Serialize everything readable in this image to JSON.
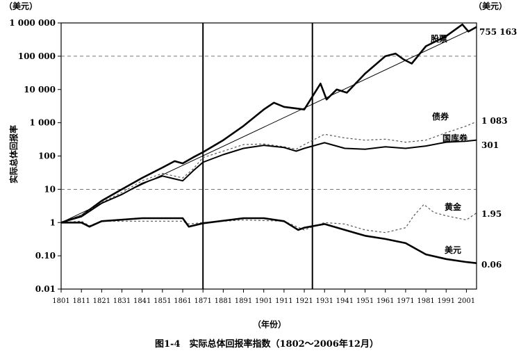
{
  "chart_data": {
    "type": "line",
    "title": "图1-4　实际总体回报率指数（1802～2006年12月）",
    "xlabel": "（年份）",
    "ylabel": "实际总体回报率",
    "y_unit_left": "（美元）",
    "y_unit_right": "（美元）",
    "yscale": "log",
    "ylim": [
      0.01,
      1000000
    ],
    "xlim": [
      1801,
      2006
    ],
    "y_ticks": [
      {
        "value": 0.01,
        "label": "0.01"
      },
      {
        "value": 0.1,
        "label": "0.10"
      },
      {
        "value": 1,
        "label": "1"
      },
      {
        "value": 10,
        "label": "10"
      },
      {
        "value": 100,
        "label": "100"
      },
      {
        "value": 1000,
        "label": "1 000"
      },
      {
        "value": 10000,
        "label": "10 000"
      },
      {
        "value": 100000,
        "label": "100 000"
      },
      {
        "value": 1000000,
        "label": "1 000 000"
      }
    ],
    "x_ticks": [
      1801,
      1811,
      1821,
      1831,
      1841,
      1851,
      1861,
      1871,
      1881,
      1891,
      1901,
      1911,
      1921,
      1931,
      1941,
      1951,
      1961,
      1971,
      1981,
      1991,
      2001
    ],
    "dashed_gridlines": [
      10,
      100000
    ],
    "vertical_markers": [
      1871,
      1925
    ],
    "series": [
      {
        "name": "股票",
        "end_value": "755 163",
        "style": "solid-thick",
        "x": [
          1801,
          1811,
          1821,
          1831,
          1841,
          1851,
          1857,
          1861,
          1866,
          1871,
          1881,
          1891,
          1901,
          1906,
          1911,
          1921,
          1929,
          1932,
          1937,
          1942,
          1951,
          1961,
          1966,
          1970,
          1974,
          1981,
          1991,
          1999,
          2002,
          2006
        ],
        "y": [
          1,
          1.6,
          4.5,
          10,
          22,
          45,
          70,
          60,
          90,
          130,
          300,
          800,
          2500,
          4000,
          3000,
          2500,
          15000,
          5000,
          10000,
          8000,
          30000,
          100000,
          120000,
          80000,
          60000,
          200000,
          400000,
          900000,
          550000,
          755163
        ]
      },
      {
        "name": "",
        "style": "trend",
        "x": [
          1801,
          2006
        ],
        "y": [
          1,
          755163
        ]
      },
      {
        "name": "债券",
        "end_value": "1 083",
        "style": "dashed",
        "x": [
          1801,
          1811,
          1821,
          1831,
          1841,
          1851,
          1861,
          1866,
          1871,
          1881,
          1891,
          1901,
          1911,
          1917,
          1921,
          1931,
          1941,
          1951,
          1961,
          1971,
          1981,
          1991,
          2001,
          2006
        ],
        "y": [
          1,
          1.6,
          4,
          8,
          18,
          30,
          22,
          40,
          90,
          140,
          220,
          230,
          190,
          160,
          220,
          450,
          350,
          300,
          320,
          260,
          300,
          500,
          800,
          1083
        ]
      },
      {
        "name": "国库券",
        "end_value": "301",
        "style": "solid",
        "x": [
          1801,
          1811,
          1821,
          1831,
          1841,
          1851,
          1861,
          1866,
          1871,
          1881,
          1891,
          1901,
          1911,
          1917,
          1921,
          1931,
          1941,
          1951,
          1961,
          1971,
          1981,
          1991,
          2001,
          2006
        ],
        "y": [
          1,
          1.5,
          3.8,
          7,
          15,
          25,
          18,
          35,
          65,
          110,
          170,
          210,
          180,
          140,
          170,
          250,
          170,
          160,
          190,
          170,
          200,
          260,
          280,
          301
        ]
      },
      {
        "name": "黄金",
        "end_value": "1.95",
        "style": "dashed",
        "x": [
          1801,
          1811,
          1815,
          1821,
          1841,
          1861,
          1864,
          1871,
          1891,
          1911,
          1921,
          1931,
          1941,
          1951,
          1961,
          1971,
          1975,
          1980,
          1985,
          1991,
          2001,
          2006
        ],
        "y": [
          1,
          1.1,
          0.8,
          1.1,
          1.1,
          1.1,
          0.9,
          1.0,
          1.2,
          1.1,
          0.6,
          1.0,
          0.9,
          0.6,
          0.5,
          0.7,
          1.6,
          3.5,
          2.0,
          1.6,
          1.2,
          1.95
        ]
      },
      {
        "name": "美元",
        "end_value": "0.06",
        "style": "solid-thick",
        "x": [
          1801,
          1811,
          1815,
          1821,
          1841,
          1861,
          1864,
          1871,
          1891,
          1901,
          1911,
          1918,
          1921,
          1931,
          1941,
          1951,
          1961,
          1971,
          1981,
          1991,
          2001,
          2006
        ],
        "y": [
          1,
          1.0,
          0.75,
          1.1,
          1.35,
          1.35,
          0.75,
          0.95,
          1.35,
          1.35,
          1.1,
          0.6,
          0.7,
          0.9,
          0.6,
          0.4,
          0.32,
          0.24,
          0.11,
          0.08,
          0.065,
          0.06
        ]
      }
    ]
  }
}
